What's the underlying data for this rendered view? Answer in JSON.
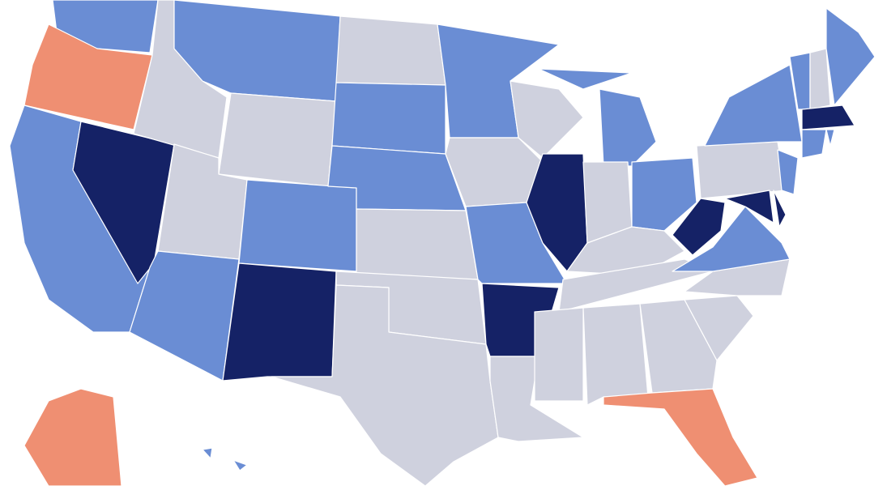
{
  "map": {
    "regions": [
      {
        "color": "#6a8dd4"
      },
      {
        "color": "#ef8f72"
      },
      {
        "color": "#6a8dd4"
      },
      {
        "color": "#152266"
      },
      {
        "color": "#cfd1de"
      },
      {
        "color": "#6a8dd4"
      },
      {
        "color": "#cfd1de"
      },
      {
        "color": "#cfd1de"
      },
      {
        "color": "#6a8dd4"
      },
      {
        "color": "#6a8dd4"
      },
      {
        "color": "#152266"
      },
      {
        "color": "#cfd1de"
      },
      {
        "color": "#6a8dd4"
      },
      {
        "color": "#6a8dd4"
      },
      {
        "color": "#cfd1de"
      },
      {
        "color": "#cfd1de"
      },
      {
        "color": "#cfd1de"
      },
      {
        "color": "#6a8dd4"
      },
      {
        "color": "#cfd1de"
      },
      {
        "color": "#6a8dd4"
      },
      {
        "color": "#152266"
      },
      {
        "color": "#cfd1de"
      },
      {
        "color": "#cfd1de"
      },
      {
        "color": "#152266"
      },
      {
        "color": "#6a8dd4"
      },
      {
        "color": "#6a8dd4"
      },
      {
        "color": "#cfd1de"
      },
      {
        "color": "#6a8dd4"
      },
      {
        "color": "#cfd1de"
      },
      {
        "color": "#cfd1de"
      },
      {
        "color": "#cfd1de"
      },
      {
        "color": "#cfd1de"
      },
      {
        "color": "#cfd1de"
      },
      {
        "color": "#ef8f72"
      },
      {
        "color": "#cfd1de"
      },
      {
        "color": "#cfd1de"
      },
      {
        "color": "#6a8dd4"
      },
      {
        "color": "#152266"
      },
      {
        "color": "#cfd1de"
      },
      {
        "color": "#6a8dd4"
      },
      {
        "color": "#152266"
      },
      {
        "color": "#152266"
      },
      {
        "color": "#6a8dd4"
      },
      {
        "color": "#6a8dd4"
      },
      {
        "color": "#cfd1de"
      },
      {
        "color": "#6a8dd4"
      },
      {
        "color": "#152266"
      },
      {
        "color": "#6a8dd4"
      },
      {
        "color": "#6a8dd4"
      },
      {
        "color": "#ef8f72"
      },
      {
        "color": "#6a8dd4"
      },
      {
        "color": "#6a8dd4"
      }
    ]
  }
}
